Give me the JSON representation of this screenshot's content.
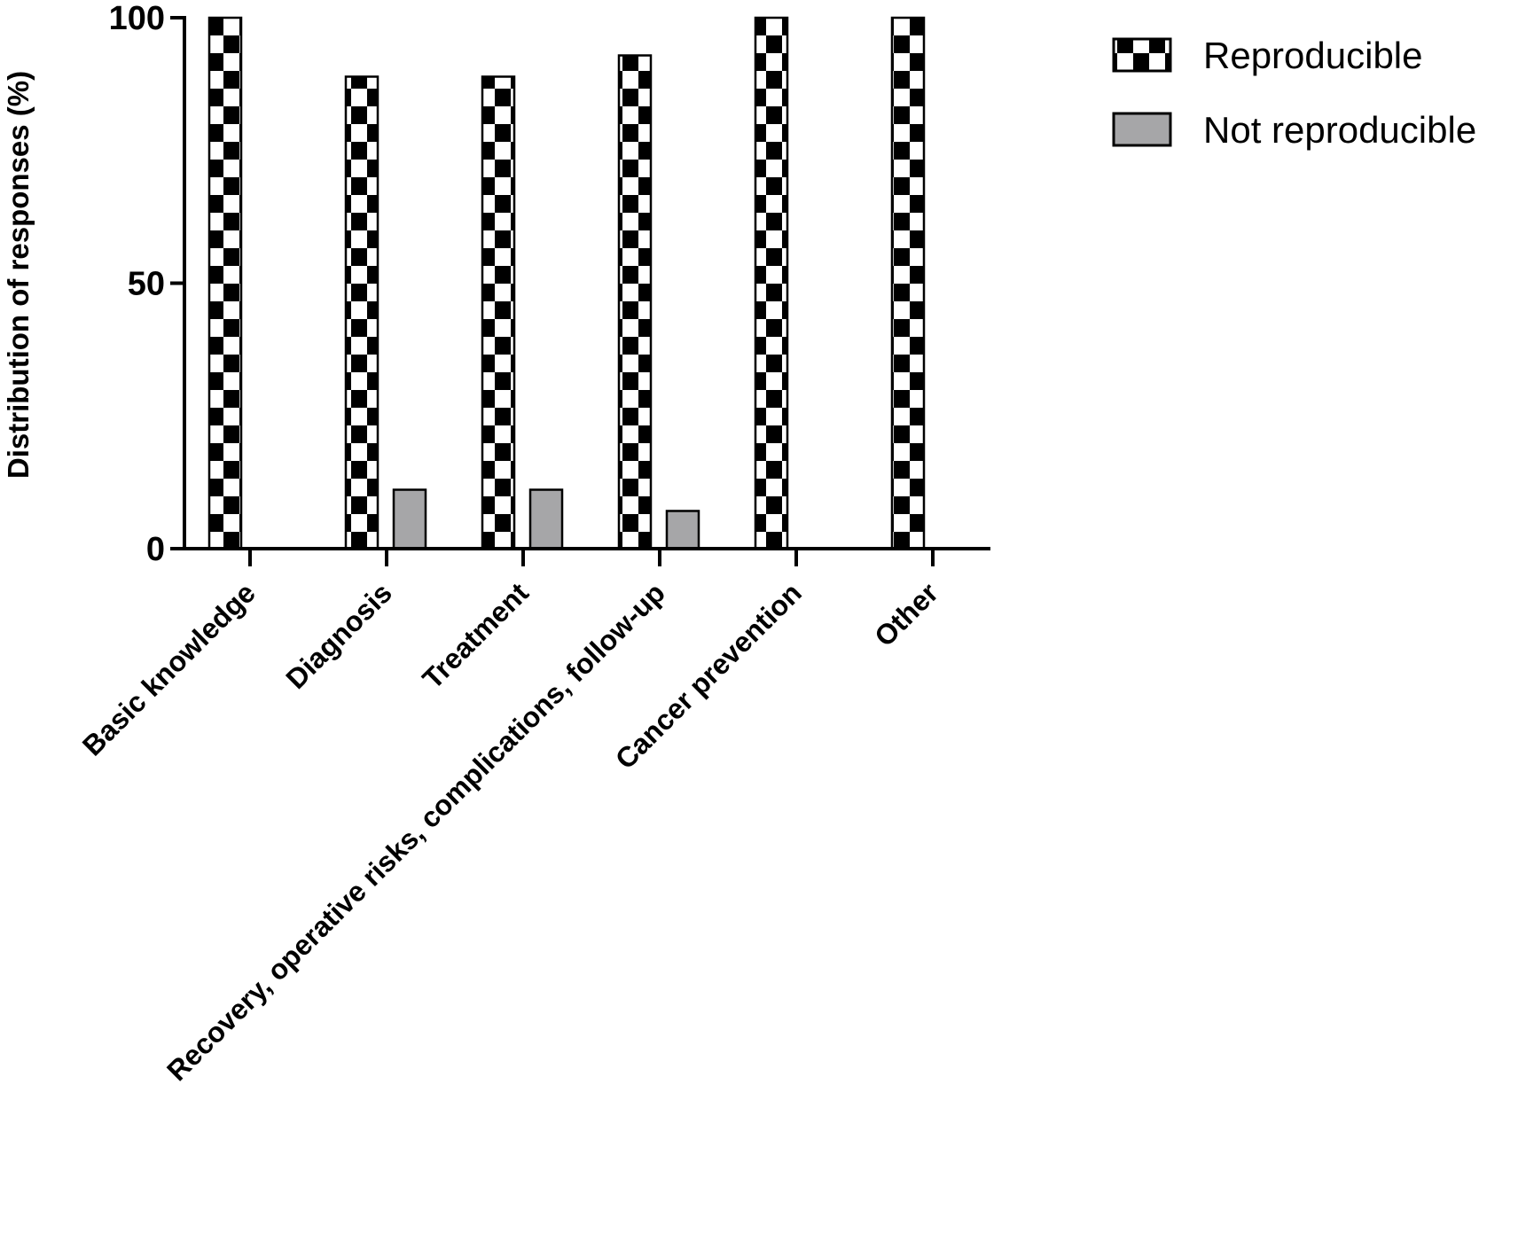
{
  "chart_data": {
    "type": "bar",
    "ylabel": "Distribution of responses (%)",
    "xlabel": "",
    "ylim": [
      0,
      100
    ],
    "yticks": [
      0,
      50,
      100
    ],
    "grid": false,
    "legend_position": "top-right",
    "categories": [
      "Basic knowledge",
      "Diagnosis",
      "Treatment",
      "Recovery, operative risks, complications, follow-up",
      "Cancer prevention",
      "Other"
    ],
    "series": [
      {
        "name": "Reproducible",
        "values": [
          100,
          88.9,
          88.9,
          92.9,
          100,
          100
        ],
        "pattern": "checkerboard",
        "color": "#000000"
      },
      {
        "name": "Not reproducible",
        "values": [
          0,
          11.1,
          11.1,
          7.1,
          0,
          0
        ],
        "pattern": "solid",
        "color": "#a6a6a8"
      }
    ]
  }
}
